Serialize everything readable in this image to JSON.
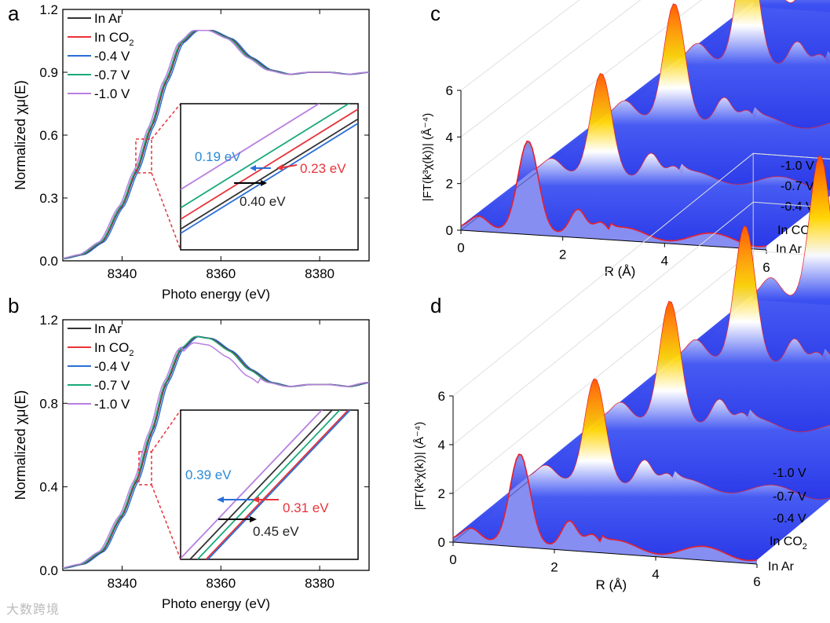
{
  "figure": {
    "watermark": "大数跨境",
    "panels": [
      {
        "id": "a",
        "label": "a"
      },
      {
        "id": "b",
        "label": "b"
      },
      {
        "id": "c",
        "label": "c"
      },
      {
        "id": "d",
        "label": "d"
      }
    ]
  },
  "chart_data": [
    {
      "panel": "a",
      "type": "line",
      "xlabel": "Photo energy (eV)",
      "ylabel": "Normalized χμ(E)",
      "xlim": [
        8328,
        8390
      ],
      "ylim": [
        0.0,
        1.2
      ],
      "xticks": [
        8340,
        8360,
        8380
      ],
      "yticks": [
        0.0,
        0.3,
        0.6,
        0.9,
        1.2
      ],
      "legend": [
        {
          "name": "In Ar",
          "color": "#333333"
        },
        {
          "name": "In CO",
          "sub": "2",
          "color": "#e8333a"
        },
        {
          "name": "-0.4 V",
          "color": "#2a6fd6"
        },
        {
          "name": "-0.7 V",
          "color": "#19a97b"
        },
        {
          "name": "-1.0 V",
          "color": "#b77fe0"
        }
      ],
      "base_curve": {
        "x": [
          8328,
          8332,
          8336,
          8340,
          8343,
          8346,
          8349,
          8352,
          8355,
          8358,
          8362,
          8366,
          8370,
          8374,
          8378,
          8382,
          8386,
          8390
        ],
        "y": [
          0.01,
          0.03,
          0.09,
          0.26,
          0.43,
          0.64,
          0.86,
          1.04,
          1.1,
          1.1,
          1.06,
          0.97,
          0.91,
          0.89,
          0.9,
          0.9,
          0.89,
          0.9
        ]
      },
      "inset": {
        "annotations": [
          {
            "text": "0.19 eV",
            "color": "#2a8ad6"
          },
          {
            "text": "0.23 eV",
            "color": "#e8333a"
          },
          {
            "text": "0.40 eV",
            "color": "#222222"
          }
        ]
      }
    },
    {
      "panel": "b",
      "type": "line",
      "xlabel": "Photo energy (eV)",
      "ylabel": "Normalized χμ(E)",
      "xlim": [
        8328,
        8390
      ],
      "ylim": [
        0.0,
        1.2
      ],
      "xticks": [
        8340,
        8360,
        8380
      ],
      "yticks": [
        0.0,
        0.4,
        0.8,
        1.2
      ],
      "legend": [
        {
          "name": "In Ar",
          "color": "#333333"
        },
        {
          "name": "In CO",
          "sub": "2",
          "color": "#e8333a"
        },
        {
          "name": "-0.4 V",
          "color": "#2a6fd6"
        },
        {
          "name": "-0.7 V",
          "color": "#19a97b"
        },
        {
          "name": "-1.0 V",
          "color": "#b77fe0"
        }
      ],
      "base_curve": {
        "x": [
          8328,
          8332,
          8336,
          8340,
          8343,
          8346,
          8349,
          8352,
          8355,
          8358,
          8362,
          8366,
          8370,
          8374,
          8378,
          8382,
          8386,
          8390
        ],
        "y": [
          0.01,
          0.03,
          0.09,
          0.26,
          0.43,
          0.66,
          0.9,
          1.06,
          1.12,
          1.11,
          1.05,
          0.96,
          0.9,
          0.88,
          0.89,
          0.89,
          0.88,
          0.9
        ]
      },
      "inset": {
        "annotations": [
          {
            "text": "0.39 eV",
            "color": "#2a8ad6"
          },
          {
            "text": "0.31 eV",
            "color": "#e8333a"
          },
          {
            "text": "0.45 eV",
            "color": "#222222"
          }
        ]
      }
    },
    {
      "panel": "c",
      "type": "area",
      "xlabel": "R (Å)",
      "ylabel": "|FT(k³χ(k))| (Å⁻⁴)",
      "xlim": [
        0,
        6
      ],
      "zlim": [
        0,
        6
      ],
      "xticks": [
        0,
        2,
        4,
        6
      ],
      "zticks": [
        0,
        2,
        4,
        6
      ],
      "series": [
        {
          "name": "In Ar",
          "peak": 3.9
        },
        {
          "name": "In CO2",
          "label": "In CO",
          "sub": "2",
          "peak": 4.4
        },
        {
          "name": "-0.4 V",
          "peak": 5.0
        },
        {
          "name": "-0.7 V",
          "peak": 5.5
        },
        {
          "name": "-1.0 V",
          "peak": 6.0
        }
      ]
    },
    {
      "panel": "d",
      "type": "area",
      "xlabel": "R (Å)",
      "ylabel": "|FT(k³χ(k))| (Å⁻⁴)",
      "xlim": [
        0,
        6
      ],
      "zlim": [
        0,
        6
      ],
      "xticks": [
        0,
        2,
        4,
        6
      ],
      "zticks": [
        0,
        2,
        4,
        6
      ],
      "series": [
        {
          "name": "In Ar",
          "peak": 3.7
        },
        {
          "name": "In CO2",
          "label": "In CO",
          "sub": "2",
          "peak": 4.3
        },
        {
          "name": "-0.4 V",
          "peak": 5.0
        },
        {
          "name": "-0.7 V",
          "peak": 5.6
        },
        {
          "name": "-1.0 V",
          "peak": 6.0
        }
      ]
    }
  ]
}
